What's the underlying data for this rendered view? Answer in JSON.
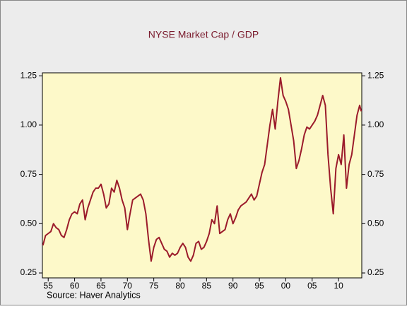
{
  "chart_data": {
    "type": "line",
    "title": "NYSE Market Cap / GDP",
    "source": "Source: Haver Analytics",
    "x": [
      1954.0,
      1954.5,
      1955,
      1955.5,
      1956,
      1956.5,
      1957,
      1957.5,
      1958,
      1958.5,
      1959,
      1959.5,
      1960,
      1960.5,
      1961,
      1961.5,
      1962,
      1962.5,
      1963,
      1963.5,
      1964,
      1964.5,
      1965,
      1965.5,
      1966,
      1966.5,
      1967,
      1967.5,
      1968,
      1968.5,
      1969,
      1969.5,
      1970,
      1970.5,
      1971,
      1971.5,
      1972,
      1972.5,
      1973,
      1973.5,
      1974,
      1974.5,
      1975,
      1975.5,
      1976,
      1976.5,
      1977,
      1977.5,
      1978,
      1978.5,
      1979,
      1979.5,
      1980,
      1980.5,
      1981,
      1981.5,
      1982,
      1982.5,
      1983,
      1983.5,
      1984,
      1984.5,
      1985,
      1985.5,
      1986,
      1986.5,
      1987,
      1987.5,
      1988,
      1988.5,
      1989,
      1989.5,
      1990,
      1990.5,
      1991,
      1991.5,
      1992,
      1992.5,
      1993,
      1993.5,
      1994,
      1994.5,
      1995,
      1995.5,
      1996,
      1996.5,
      1997,
      1997.5,
      1998,
      1998.5,
      1999,
      1999.5,
      2000,
      2000.5,
      2001,
      2001.5,
      2002,
      2002.5,
      2003,
      2003.5,
      2004,
      2004.5,
      2005,
      2005.5,
      2006,
      2006.5,
      2007,
      2007.5,
      2008,
      2008.5,
      2009,
      2009.5,
      2010,
      2010.5,
      2011,
      2011.5,
      2012,
      2012.5,
      2013,
      2013.5,
      2014,
      2014.3
    ],
    "series": [
      {
        "name": "NYSE Market Cap / GDP",
        "color": "#9b1b2b",
        "values": [
          0.39,
          0.44,
          0.45,
          0.46,
          0.5,
          0.48,
          0.47,
          0.44,
          0.43,
          0.47,
          0.52,
          0.55,
          0.56,
          0.55,
          0.6,
          0.62,
          0.52,
          0.58,
          0.62,
          0.66,
          0.68,
          0.68,
          0.7,
          0.65,
          0.58,
          0.6,
          0.68,
          0.66,
          0.72,
          0.68,
          0.62,
          0.58,
          0.47,
          0.55,
          0.62,
          0.63,
          0.64,
          0.65,
          0.62,
          0.55,
          0.42,
          0.31,
          0.38,
          0.42,
          0.43,
          0.4,
          0.37,
          0.36,
          0.33,
          0.35,
          0.34,
          0.35,
          0.38,
          0.4,
          0.38,
          0.33,
          0.31,
          0.34,
          0.4,
          0.41,
          0.37,
          0.38,
          0.41,
          0.45,
          0.52,
          0.5,
          0.59,
          0.45,
          0.46,
          0.47,
          0.52,
          0.55,
          0.5,
          0.53,
          0.57,
          0.59,
          0.6,
          0.61,
          0.63,
          0.65,
          0.62,
          0.64,
          0.7,
          0.76,
          0.8,
          0.9,
          1.0,
          1.08,
          0.98,
          1.12,
          1.24,
          1.15,
          1.12,
          1.08,
          1.0,
          0.92,
          0.78,
          0.82,
          0.88,
          0.95,
          0.99,
          0.98,
          1.0,
          1.02,
          1.05,
          1.1,
          1.15,
          1.1,
          0.85,
          0.68,
          0.55,
          0.78,
          0.85,
          0.8,
          0.95,
          0.68,
          0.8,
          0.85,
          0.95,
          1.05,
          1.1,
          1.07
        ]
      }
    ],
    "xlim": [
      1953.9,
      2014.4
    ],
    "xticks": [
      {
        "value": 1955,
        "label": "55"
      },
      {
        "value": 1960,
        "label": "60"
      },
      {
        "value": 1965,
        "label": "65"
      },
      {
        "value": 1970,
        "label": "70"
      },
      {
        "value": 1975,
        "label": "75"
      },
      {
        "value": 1980,
        "label": "80"
      },
      {
        "value": 1985,
        "label": "85"
      },
      {
        "value": 1990,
        "label": "90"
      },
      {
        "value": 1995,
        "label": "95"
      },
      {
        "value": 2000,
        "label": "00"
      },
      {
        "value": 2005,
        "label": "05"
      },
      {
        "value": 2010,
        "label": "10"
      }
    ],
    "ylim": [
      0.225,
      1.265
    ],
    "yticks": [
      {
        "value": 0.25,
        "label": "0.25"
      },
      {
        "value": 0.5,
        "label": "0.50"
      },
      {
        "value": 0.75,
        "label": "0.75"
      },
      {
        "value": 1.0,
        "label": "1.00"
      },
      {
        "value": 1.25,
        "label": "1.25"
      }
    ],
    "y2lim": [
      0.225,
      1.265
    ],
    "y2ticks": [
      {
        "value": 0.25,
        "label": "0.25"
      },
      {
        "value": 0.5,
        "label": "0.50"
      },
      {
        "value": 0.75,
        "label": "0.75"
      },
      {
        "value": 1.0,
        "label": "1.00"
      },
      {
        "value": 1.25,
        "label": "1.25"
      }
    ],
    "plot_background": "#fdf9c9",
    "title_color": "#7b1c2e"
  }
}
